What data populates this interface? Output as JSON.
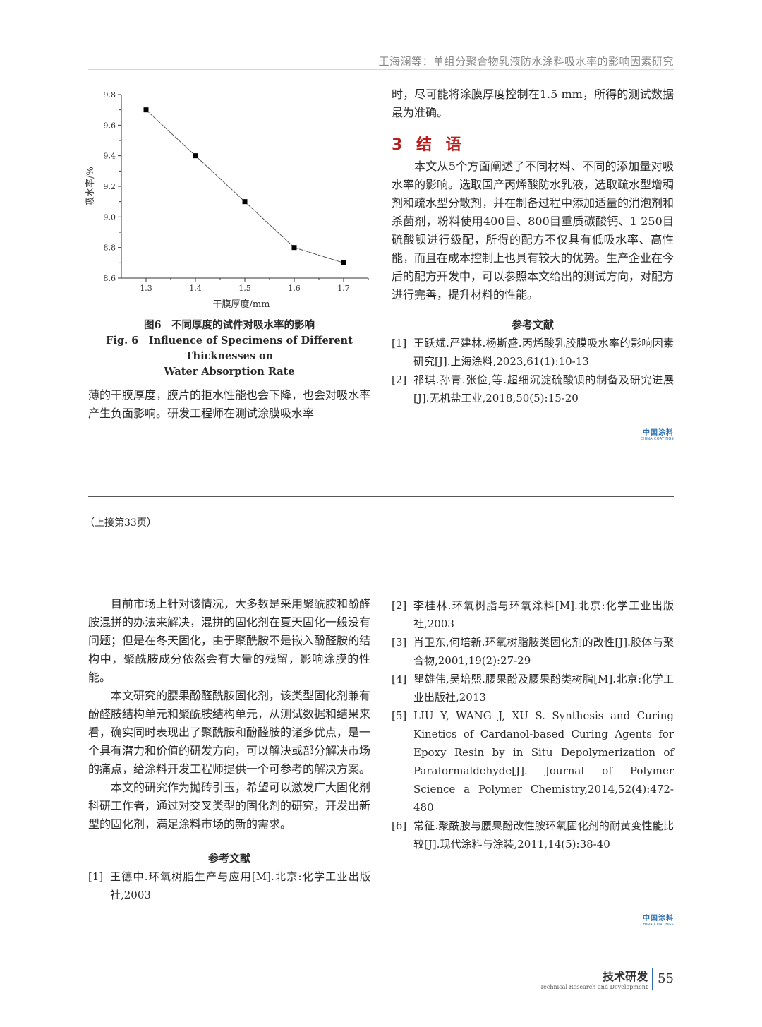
{
  "header": {
    "running_title": "王海澜等：单组分聚合物乳液防水涂料吸水率的影响因素研究"
  },
  "chart_data": {
    "type": "line",
    "x": [
      1.3,
      1.4,
      1.5,
      1.6,
      1.7
    ],
    "y": [
      9.7,
      9.4,
      9.1,
      8.8,
      8.7
    ],
    "xlabel": "干膜厚度/mm",
    "ylabel": "吸水率/%",
    "xlim": [
      1.25,
      1.75
    ],
    "ylim": [
      8.6,
      9.8
    ],
    "xticks": [
      "1.3",
      "1.4",
      "1.5",
      "1.6",
      "1.7"
    ],
    "yticks": [
      "8.6",
      "8.8",
      "9.0",
      "9.2",
      "9.4",
      "9.6",
      "9.8"
    ],
    "marker": "square",
    "grid": false,
    "line_color": "#555555"
  },
  "figure": {
    "caption_cn": "图6　不同厚度的试件对吸水率的影响",
    "caption_en_1": "Fig. 6　Influence of Specimens of Different Thicknesses on",
    "caption_en_2": "Water Absorption Rate"
  },
  "top_left": {
    "para": "薄的干膜厚度，膜片的拒水性能也会下降，也会对吸水率产生负面影响。研发工程师在测试涂膜吸水率"
  },
  "top_right": {
    "para_cont": "时，尽可能将涂膜厚度控制在1.5 mm，所得的测试数据最为准确。",
    "section_heading": "3 结 语",
    "conclusion": "本文从5个方面阐述了不同材料、不同的添加量对吸水率的影响。选取国产丙烯酸防水乳液，选取疏水型增稠剂和疏水型分散剂，并在制备过程中添加适量的消泡剂和杀菌剂，粉料使用400目、800目重质碳酸钙、1 250目硫酸钡进行级配，所得的配方不仅具有低吸水率、高性能，而且在成本控制上也具有较大的优势。生产企业在今后的配方开发中，可以参照本文给出的测试方向，对配方进行完善，提升材料的性能。",
    "refs_heading": "参考文献",
    "refs": [
      {
        "n": "[1]",
        "text": "王跃斌.严建林.杨斯盛.丙烯酸乳胶膜吸水率的影响因素研究[J].上海涂料,2023,61(1):10-13"
      },
      {
        "n": "[2]",
        "text": "祁琪.孙青.张俭,等.超细沉淀硫酸钡的制备及研究进展[J].无机盐工业,2018,50(5):15-20"
      }
    ]
  },
  "logo": {
    "cn": "中国涂料",
    "en": "CHINA COATINGS",
    "color": "#2b6fb0"
  },
  "continued_note": "（上接第33页）",
  "bottom_left": {
    "paras": [
      "目前市场上针对该情况，大多数是采用聚酰胺和酚醛胺混拼的办法来解决，混拼的固化剂在夏天固化一般没有问题；但是在冬天固化，由于聚酰胺不是嵌入酚醛胺的结构中，聚酰胺成分依然会有大量的残留，影响涂膜的性能。",
      "本文研究的腰果酚醛酰胺固化剂，该类型固化剂兼有酚醛胺结构单元和聚酰胺结构单元，从测试数据和结果来看，确实同时表现出了聚酰胺和酚醛胺的诸多优点，是一个具有潜力和价值的研发方向，可以解决或部分解决市场的痛点，给涂料开发工程师提供一个可参考的解决方案。",
      "本文的研究作为抛砖引玉，希望可以激发广大固化剂科研工作者，通过对交叉类型的固化剂的研究，开发出新型的固化剂，满足涂料市场的新的需求。"
    ],
    "refs_heading": "参考文献",
    "refs": [
      {
        "n": "[1]",
        "text": "王德中.环氧树脂生产与应用[M].北京:化学工业出版社,2003"
      }
    ]
  },
  "bottom_right": {
    "refs": [
      {
        "n": "[2]",
        "text": "李桂林.环氧树脂与环氧涂料[M].北京:化学工业出版社,2003"
      },
      {
        "n": "[3]",
        "text": "肖卫东,何培新.环氧树脂胺类固化剂的改性[J].胶体与聚合物,2001,19(2):27-29"
      },
      {
        "n": "[4]",
        "text": "瞿雄伟,吴培熙.腰果酚及腰果酚类树脂[M].北京:化学工业出版社,2013"
      },
      {
        "n": "[5]",
        "text": "LIU Y, WANG J, XU S. Synthesis and Curing Kinetics of Cardanol-based Curing Agents for Epoxy Resin by in Situ Depolymerization of Paraformaldehyde[J]. Journal of Polymer Science a Polymer Chemistry,2014,52(4):472-480"
      },
      {
        "n": "[6]",
        "text": "常征.聚酰胺与腰果酚改性胺环氧固化剂的耐黄变性能比较[J].现代涂料与涂装,2011,14(5):38-40"
      }
    ]
  },
  "footer": {
    "section_cn": "技术研发",
    "section_en": "Technical Research and Development",
    "page_number": "55"
  }
}
